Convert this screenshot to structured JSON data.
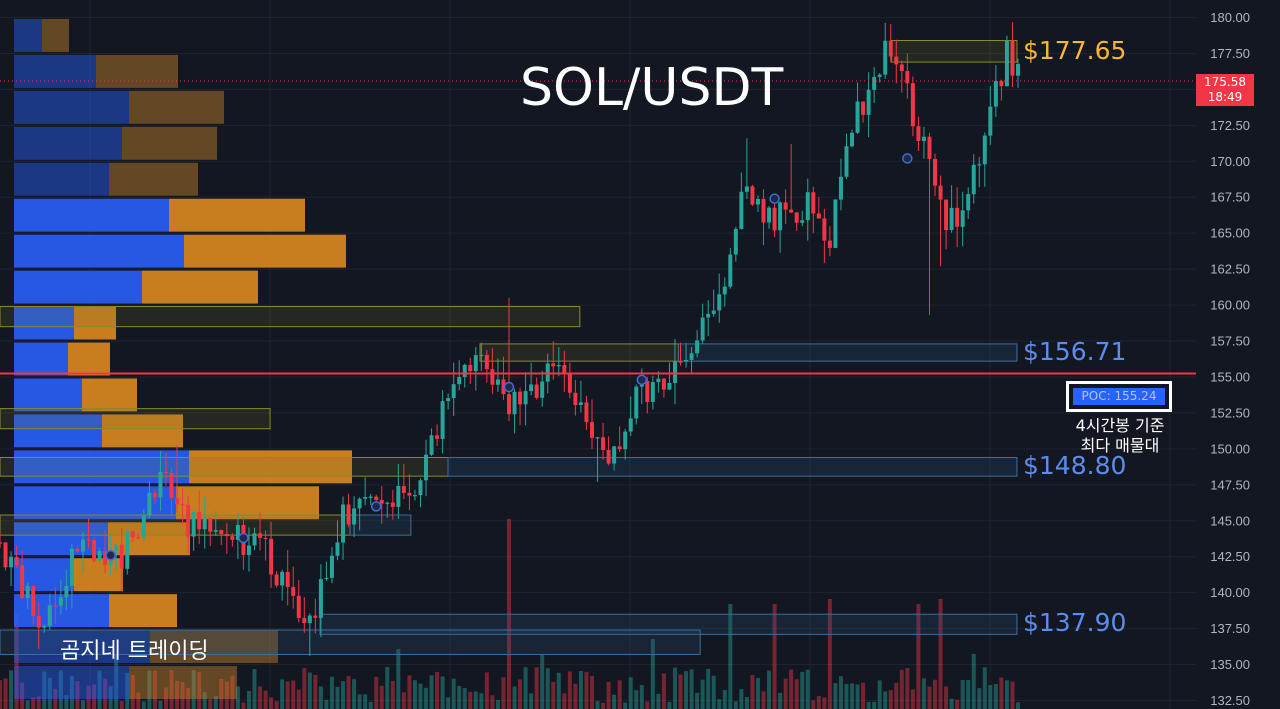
{
  "chart_data": {
    "type": "candlestick",
    "title": "SOL/USDT",
    "ylim": [
      132.5,
      180.0
    ],
    "y_ticks": [
      "180.00",
      "177.50",
      "175.00",
      "172.50",
      "170.00",
      "167.50",
      "165.00",
      "162.50",
      "160.00",
      "157.50",
      "155.00",
      "152.50",
      "150.00",
      "147.50",
      "145.00",
      "142.50",
      "140.00",
      "137.50",
      "135.00",
      "132.50"
    ],
    "current_price": {
      "value": "175.58",
      "countdown": "18:49",
      "numeric": 175.58
    },
    "levels": [
      {
        "label": "$177.65",
        "value": 177.65,
        "color": "#f5b731"
      },
      {
        "label": "$156.71",
        "value": 156.71,
        "color": "#5b8def"
      },
      {
        "label": "$148.80",
        "value": 148.8,
        "color": "#5b8def"
      },
      {
        "label": "$137.90",
        "value": 137.9,
        "color": "#5b8def"
      }
    ],
    "poc": {
      "label": "POC: 155.24",
      "value": 155.24,
      "note_line1": "4시간봉 기준",
      "note_line2": "최다 매물대"
    },
    "watermark": "곰지네 트레이딩",
    "colors": {
      "up": "#26a69a",
      "down": "#f23645",
      "vp_buy": "#2962ff",
      "vp_sell": "#f0a030",
      "poc_line": "#f23645"
    },
    "grid": true,
    "volume_profile": {
      "bin_size": 2.5,
      "rows": [
        {
          "price": 178.75,
          "buy": 28,
          "sell": 27
        },
        {
          "price": 176.25,
          "buy": 82,
          "sell": 82
        },
        {
          "price": 173.75,
          "buy": 115,
          "sell": 95
        },
        {
          "price": 171.25,
          "buy": 108,
          "sell": 95
        },
        {
          "price": 168.75,
          "buy": 95,
          "sell": 89
        },
        {
          "price": 166.25,
          "buy": 155,
          "sell": 136
        },
        {
          "price": 163.75,
          "buy": 170,
          "sell": 162
        },
        {
          "price": 161.25,
          "buy": 128,
          "sell": 116
        },
        {
          "price": 158.75,
          "buy": 60,
          "sell": 42
        },
        {
          "price": 156.25,
          "buy": 54,
          "sell": 42
        },
        {
          "price": 153.75,
          "buy": 68,
          "sell": 55
        },
        {
          "price": 151.25,
          "buy": 88,
          "sell": 81
        },
        {
          "price": 148.75,
          "buy": 175,
          "sell": 163
        },
        {
          "price": 146.25,
          "buy": 162,
          "sell": 143
        },
        {
          "price": 143.75,
          "buy": 94,
          "sell": 82
        },
        {
          "price": 141.25,
          "buy": 60,
          "sell": 49
        },
        {
          "price": 138.75,
          "buy": 95,
          "sell": 68
        },
        {
          "price": 136.25,
          "buy": 136,
          "sell": 128
        },
        {
          "price": 133.75,
          "buy": 115,
          "sell": 108
        }
      ]
    },
    "zones": [
      {
        "top": 178.4,
        "bottom": 176.9,
        "x1": 0.6965,
        "x2": 0.7945,
        "color": "yellow"
      },
      {
        "top": 159.9,
        "bottom": 158.5,
        "x1": 0.0,
        "x2": 0.453,
        "color": "yellow"
      },
      {
        "top": 157.3,
        "bottom": 156.1,
        "x1": 0.375,
        "x2": 0.53,
        "color": "yellow"
      },
      {
        "top": 157.3,
        "bottom": 156.1,
        "x1": 0.53,
        "x2": 0.7945,
        "color": "blue"
      },
      {
        "top": 152.8,
        "bottom": 151.4,
        "x1": 0.0,
        "x2": 0.211,
        "color": "yellow"
      },
      {
        "top": 149.4,
        "bottom": 148.1,
        "x1": 0.0,
        "x2": 0.35,
        "color": "yellow"
      },
      {
        "top": 149.4,
        "bottom": 148.1,
        "x1": 0.35,
        "x2": 0.7945,
        "color": "blue"
      },
      {
        "top": 145.4,
        "bottom": 144.0,
        "x1": 0.0,
        "x2": 0.2735,
        "color": "yellow"
      },
      {
        "top": 145.4,
        "bottom": 144.0,
        "x1": 0.2735,
        "x2": 0.321,
        "color": "blue"
      },
      {
        "top": 138.5,
        "bottom": 137.1,
        "x1": 0.25,
        "x2": 0.7945,
        "color": "blue"
      },
      {
        "top": 137.4,
        "bottom": 135.7,
        "x1": 0.0,
        "x2": 0.547,
        "color": "blue"
      }
    ],
    "markers": [
      {
        "i": 20,
        "price": 142.6
      },
      {
        "i": 44,
        "price": 143.8
      },
      {
        "i": 68,
        "price": 146.0
      },
      {
        "i": 92,
        "price": 154.3
      },
      {
        "i": 116,
        "price": 154.8
      },
      {
        "i": 140,
        "price": 167.4
      },
      {
        "i": 164,
        "price": 170.2
      }
    ],
    "candles_count": 185,
    "anchors": [
      [
        0,
        143.5
      ],
      [
        8,
        137.5
      ],
      [
        14,
        143.5
      ],
      [
        22,
        142.5
      ],
      [
        30,
        148.5
      ],
      [
        34,
        145.0
      ],
      [
        40,
        144.0
      ],
      [
        48,
        143.0
      ],
      [
        54,
        138.0
      ],
      [
        57,
        138.5
      ],
      [
        62,
        145.5
      ],
      [
        70,
        146.5
      ],
      [
        76,
        147.0
      ],
      [
        80,
        153.0
      ],
      [
        86,
        156.5
      ],
      [
        92,
        153.0
      ],
      [
        100,
        155.5
      ],
      [
        106,
        151.5
      ],
      [
        110,
        149.5
      ],
      [
        116,
        154.0
      ],
      [
        122,
        155.0
      ],
      [
        130,
        160.5
      ],
      [
        134,
        168.0
      ],
      [
        138,
        166.0
      ],
      [
        146,
        167.0
      ],
      [
        150,
        165.0
      ],
      [
        155,
        173.5
      ],
      [
        160,
        177.5
      ],
      [
        163,
        176.0
      ],
      [
        167,
        171.0
      ],
      [
        171,
        165.0
      ],
      [
        175,
        168.0
      ],
      [
        179,
        173.0
      ],
      [
        182,
        177.5
      ],
      [
        184,
        176.0
      ]
    ],
    "volume_spikes": [
      [
        3,
        95
      ],
      [
        21,
        55
      ],
      [
        46,
        40
      ],
      [
        72,
        60
      ],
      [
        92,
        190
      ],
      [
        98,
        55
      ],
      [
        118,
        70
      ],
      [
        132,
        105
      ],
      [
        140,
        105
      ],
      [
        150,
        110
      ],
      [
        166,
        105
      ],
      [
        170,
        110
      ],
      [
        176,
        55
      ]
    ]
  }
}
